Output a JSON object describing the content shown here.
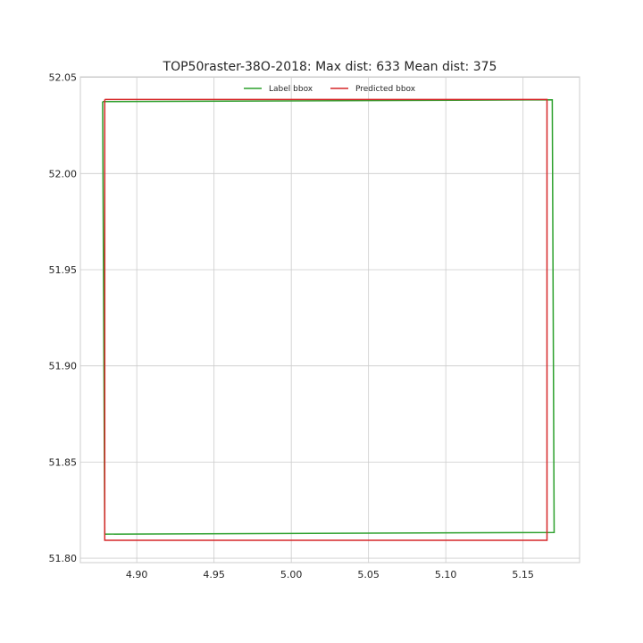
{
  "chart_data": {
    "type": "line",
    "title": "TOP50raster-38O-2018: Max dist: 633 Mean dist: 375",
    "xlabel": "",
    "ylabel": "",
    "xlim": [
      4.8635,
      5.1866
    ],
    "ylim": [
      51.7977,
      52.0503
    ],
    "xticks": [
      4.9,
      4.95,
      5.0,
      5.05,
      5.1,
      5.15
    ],
    "xtick_labels": [
      "4.90",
      "4.95",
      "5.00",
      "5.05",
      "5.10",
      "5.15"
    ],
    "yticks": [
      51.8,
      51.85,
      51.9,
      51.95,
      52.0,
      52.05
    ],
    "ytick_labels": [
      "51.80",
      "51.85",
      "51.90",
      "51.95",
      "52.00",
      "52.05"
    ],
    "grid": true,
    "legend": "top-center",
    "series": [
      {
        "name": "Label bbox",
        "color": "#2ca02c",
        "x": [
          4.8779,
          5.1689,
          5.1701,
          4.8793,
          4.8779
        ],
        "y": [
          52.0374,
          52.0383,
          51.8134,
          51.8125,
          52.0374
        ]
      },
      {
        "name": "Predicted bbox",
        "color": "#d62728",
        "x": [
          4.8793,
          5.1655,
          5.1655,
          4.8793,
          4.8793
        ],
        "y": [
          52.0385,
          52.0385,
          51.8093,
          51.8093,
          52.0385
        ]
      }
    ]
  }
}
